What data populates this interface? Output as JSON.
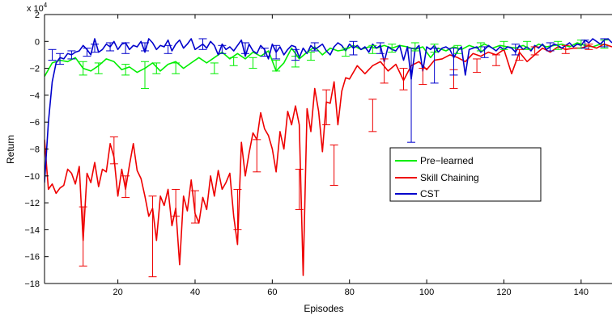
{
  "chart_data": {
    "type": "line",
    "title": "",
    "xlabel": "Episodes",
    "ylabel": "Return",
    "exponent_label": "x 10",
    "exponent_power": "4",
    "xlim": [
      1,
      148
    ],
    "ylim": [
      -18,
      2
    ],
    "xticks": [
      20,
      40,
      60,
      80,
      100,
      120,
      140
    ],
    "yticks": [
      -18,
      -16,
      -14,
      -12,
      -10,
      -8,
      -6,
      -4,
      -2,
      0,
      2
    ],
    "grid": false,
    "legend_position": "center-right",
    "series": [
      {
        "name": "Pre−learned",
        "color": "#00ee00",
        "x": [
          1,
          3,
          5,
          7,
          9,
          11,
          13,
          15,
          17,
          19,
          21,
          23,
          25,
          27,
          29,
          31,
          33,
          35,
          37,
          39,
          41,
          43,
          45,
          47,
          49,
          51,
          53,
          55,
          57,
          59,
          61,
          63,
          65,
          67,
          69,
          71,
          73,
          75,
          77,
          79,
          81,
          83,
          85,
          87,
          89,
          91,
          93,
          95,
          97,
          99,
          101,
          103,
          105,
          107,
          109,
          111,
          113,
          115,
          117,
          119,
          121,
          123,
          125,
          127,
          129,
          131,
          133,
          135,
          137,
          139,
          141,
          143,
          145,
          147
        ],
        "y": [
          -2.6,
          -1.6,
          -1.4,
          -1.5,
          -1.2,
          -2.0,
          -2.2,
          -1.8,
          -1.3,
          -1.5,
          -2.1,
          -1.9,
          -2.3,
          -2.0,
          -1.6,
          -2.2,
          -1.7,
          -1.5,
          -2.0,
          -1.6,
          -1.2,
          -1.6,
          -1.2,
          -0.8,
          -1.3,
          -0.9,
          -1.3,
          -0.8,
          -1.1,
          -0.7,
          -2.2,
          -1.6,
          -0.5,
          -1.3,
          -0.8,
          -0.4,
          -1.0,
          -0.5,
          -0.7,
          -0.6,
          -0.3,
          -0.6,
          -0.4,
          -0.5,
          -0.3,
          -0.5,
          -0.3,
          -0.4,
          -0.6,
          -0.4,
          -1.2,
          -0.5,
          -0.7,
          -0.4,
          -0.6,
          -0.3,
          -0.5,
          -0.2,
          -0.5,
          -0.3,
          -0.4,
          -0.5,
          -0.3,
          -0.6,
          -0.2,
          -0.4,
          -0.3,
          -0.2,
          -0.4,
          -0.1,
          -0.3,
          -0.4,
          -0.2,
          -0.3
        ],
        "error_x": [
          11,
          15,
          22,
          27,
          30,
          35,
          45,
          50,
          55,
          61,
          66,
          70,
          79,
          86,
          91,
          97,
          102,
          108,
          114,
          120,
          126,
          134,
          140,
          146
        ],
        "error_y": [
          -2.0,
          -2.0,
          -2.1,
          -2.5,
          -2.0,
          -2.0,
          -2.0,
          -1.5,
          -1.6,
          -1.8,
          -1.5,
          -1.1,
          -0.8,
          -0.6,
          -0.5,
          -0.4,
          -0.5,
          -0.6,
          -0.4,
          -0.3,
          -0.3,
          -0.3,
          -0.2,
          -0.2
        ],
        "error_half": [
          0.5,
          0.4,
          0.4,
          1.0,
          0.4,
          0.4,
          0.4,
          0.3,
          0.4,
          0.4,
          0.4,
          0.3,
          0.3,
          0.3,
          0.3,
          0.3,
          0.3,
          0.3,
          0.3,
          0.3,
          0.3,
          0.3,
          0.3,
          0.3
        ]
      },
      {
        "name": "Skill Chaining",
        "color": "#ee0000",
        "x": [
          1,
          2,
          3,
          4,
          5,
          6,
          7,
          8,
          9,
          10,
          11,
          12,
          13,
          14,
          15,
          16,
          17,
          18,
          19,
          20,
          21,
          22,
          23,
          24,
          25,
          26,
          27,
          28,
          29,
          30,
          31,
          32,
          33,
          34,
          35,
          36,
          37,
          38,
          39,
          40,
          41,
          42,
          43,
          44,
          45,
          46,
          47,
          48,
          49,
          50,
          51,
          52,
          53,
          54,
          55,
          56,
          57,
          58,
          59,
          60,
          61,
          62,
          63,
          64,
          65,
          66,
          67,
          68,
          69,
          70,
          71,
          72,
          73,
          74,
          75,
          76,
          77,
          78,
          79,
          80,
          82,
          84,
          86,
          88,
          90,
          92,
          94,
          96,
          98,
          100,
          102,
          104,
          106,
          108,
          110,
          112,
          114,
          116,
          118,
          120,
          122,
          124,
          126,
          128,
          130,
          132,
          134,
          136,
          138,
          140,
          142,
          144,
          146,
          148
        ],
        "y": [
          -7.3,
          -11.0,
          -10.6,
          -11.3,
          -10.9,
          -10.7,
          -9.5,
          -9.8,
          -10.6,
          -9.3,
          -14.8,
          -9.8,
          -10.5,
          -9.0,
          -10.8,
          -9.5,
          -9.7,
          -7.6,
          -8.6,
          -11.5,
          -9.5,
          -11.0,
          -9.2,
          -7.6,
          -9.6,
          -10.2,
          -11.5,
          -13.0,
          -12.4,
          -14.8,
          -11.5,
          -12.2,
          -11.0,
          -13.7,
          -12.4,
          -16.6,
          -11.5,
          -12.6,
          -10.3,
          -12.8,
          -13.5,
          -11.6,
          -12.5,
          -10.0,
          -11.5,
          -9.6,
          -11.0,
          -10.5,
          -9.8,
          -13.0,
          -15.1,
          -7.5,
          -10.0,
          -8.3,
          -6.8,
          -7.3,
          -5.3,
          -6.5,
          -7.0,
          -8.0,
          -9.7,
          -6.7,
          -8.0,
          -5.2,
          -6.2,
          -4.8,
          -6.2,
          -17.4,
          -5.0,
          -6.7,
          -3.5,
          -5.2,
          -8.2,
          -4.5,
          -4.6,
          -3.0,
          -6.2,
          -3.7,
          -2.7,
          -2.8,
          -1.8,
          -2.4,
          -1.8,
          -1.5,
          -2.2,
          -1.7,
          -2.9,
          -1.8,
          -1.5,
          -2.1,
          -1.4,
          -1.3,
          -1.0,
          -1.2,
          -1.5,
          -0.9,
          -1.1,
          -0.8,
          -1.0,
          -0.6,
          -2.4,
          -0.8,
          -1.5,
          -1.0,
          -0.5,
          -0.8,
          -0.4,
          -0.6,
          -0.5,
          -0.5,
          -0.3,
          -0.5,
          -0.2,
          -0.4
        ],
        "error_x": [
          11,
          19,
          22,
          29,
          35,
          40,
          51,
          56,
          67,
          74,
          76,
          86,
          89,
          94,
          99,
          107,
          113,
          118,
          124,
          128,
          136,
          142
        ],
        "error_y": [
          -14.5,
          -8.1,
          -10.8,
          -14.5,
          -12.0,
          -12.3,
          -12.5,
          -8.5,
          -11.0,
          -4.9,
          -9.2,
          -5.5,
          -2.2,
          -2.8,
          -2.6,
          -2.8,
          -1.8,
          -1.4,
          -1.0,
          -0.7,
          -0.6,
          -0.4
        ],
        "error_half": [
          2.2,
          1.0,
          0.8,
          3.0,
          1.0,
          1.2,
          1.5,
          1.2,
          1.5,
          1.3,
          1.5,
          1.2,
          0.9,
          0.8,
          0.6,
          0.7,
          0.5,
          0.4,
          0.4,
          0.3,
          0.3,
          0.2
        ]
      },
      {
        "name": "CST",
        "color": "#0000cc",
        "x": [
          1,
          2,
          3,
          4,
          5,
          6,
          7,
          8,
          9,
          10,
          11,
          12,
          13,
          14,
          15,
          16,
          17,
          18,
          19,
          20,
          21,
          22,
          23,
          24,
          25,
          26,
          27,
          28,
          29,
          30,
          31,
          32,
          33,
          34,
          35,
          36,
          37,
          38,
          39,
          40,
          41,
          42,
          43,
          44,
          45,
          46,
          47,
          48,
          49,
          50,
          51,
          52,
          53,
          54,
          55,
          56,
          57,
          58,
          59,
          60,
          61,
          62,
          63,
          64,
          65,
          66,
          67,
          68,
          69,
          70,
          71,
          72,
          73,
          74,
          75,
          76,
          77,
          78,
          79,
          80,
          81,
          82,
          83,
          84,
          85,
          86,
          87,
          88,
          89,
          90,
          91,
          92,
          93,
          94,
          95,
          96,
          97,
          98,
          99,
          100,
          101,
          102,
          103,
          104,
          105,
          106,
          107,
          108,
          109,
          110,
          111,
          112,
          113,
          114,
          115,
          116,
          117,
          118,
          119,
          120,
          121,
          122,
          123,
          124,
          125,
          126,
          127,
          128,
          129,
          130,
          131,
          132,
          133,
          134,
          135,
          136,
          137,
          138,
          139,
          140,
          141,
          142,
          143,
          144,
          145,
          146,
          147,
          148
        ],
        "y": [
          -10.5,
          -6.0,
          -3.0,
          -1.6,
          -1.2,
          -1.3,
          -0.9,
          -1.0,
          -0.8,
          -0.7,
          -0.3,
          -0.6,
          -1.0,
          0.2,
          -0.8,
          -0.6,
          -0.2,
          -0.4,
          0.0,
          -0.6,
          -0.2,
          -0.1,
          -0.6,
          -0.3,
          -0.4,
          0.0,
          -0.8,
          0.2,
          -0.1,
          -0.6,
          -0.3,
          -0.4,
          0.1,
          -0.7,
          -0.2,
          0.1,
          -0.5,
          -0.2,
          0.2,
          -0.6,
          -0.4,
          -0.2,
          -0.5,
          0.0,
          -0.3,
          -1.0,
          -0.2,
          -0.6,
          -0.4,
          -0.7,
          -0.3,
          0.1,
          -1.1,
          -0.2,
          -0.7,
          -0.9,
          -0.3,
          -0.6,
          -1.3,
          -0.2,
          -0.8,
          -0.4,
          -1.0,
          -0.6,
          -0.3,
          -0.4,
          -1.2,
          -0.5,
          -0.9,
          -0.3,
          -0.6,
          -0.4,
          -0.2,
          -0.7,
          -1.0,
          -0.4,
          -0.1,
          -0.3,
          -0.7,
          -0.2,
          -0.5,
          -0.3,
          -0.6,
          -0.4,
          -0.8,
          -0.2,
          -0.5,
          -0.3,
          -1.5,
          -0.4,
          -0.6,
          -0.7,
          -0.3,
          -1.4,
          -0.4,
          -2.8,
          -0.6,
          -0.3,
          -2.2,
          -0.4,
          -0.6,
          -0.3,
          -0.8,
          -0.5,
          -0.4,
          -0.6,
          -1.2,
          -0.7,
          -0.4,
          -2.5,
          -0.6,
          -0.5,
          -0.4,
          -0.8,
          -0.6,
          -0.3,
          -0.5,
          -0.7,
          -0.4,
          -0.6,
          -0.4,
          -0.5,
          -0.8,
          -0.3,
          -0.6,
          -0.4,
          -0.7,
          -0.3,
          -0.5,
          -0.2,
          -0.6,
          -0.4,
          -0.2,
          -0.3,
          -0.5,
          -0.3,
          -0.1,
          -0.4,
          -0.2,
          -0.3,
          0.1,
          -0.1,
          0.2,
          0.0,
          -0.2,
          0.1,
          0.2,
          -0.1
        ],
        "error_x": [
          3,
          5,
          8,
          12,
          14,
          18,
          22,
          27,
          33,
          42,
          47,
          53,
          58,
          61,
          66,
          71,
          81,
          88,
          96,
          102,
          107,
          115,
          123,
          132,
          141,
          146
        ],
        "error_y": [
          -1.0,
          -1.3,
          -1.0,
          -0.8,
          -0.5,
          -0.4,
          -0.5,
          -0.4,
          -0.6,
          -0.2,
          -0.6,
          -0.5,
          -0.8,
          -0.8,
          -1.0,
          -0.4,
          -0.5,
          -0.5,
          -4.0,
          -1.8,
          -1.5,
          -0.8,
          -0.6,
          -0.4,
          -0.2,
          -0.1
        ],
        "error_half": [
          0.4,
          0.4,
          0.3,
          0.3,
          0.3,
          0.3,
          0.4,
          0.3,
          0.3,
          0.4,
          0.3,
          0.4,
          0.3,
          0.5,
          0.4,
          0.3,
          0.5,
          0.4,
          3.5,
          1.3,
          1.0,
          0.4,
          0.4,
          0.3,
          0.3,
          0.3
        ]
      }
    ]
  }
}
